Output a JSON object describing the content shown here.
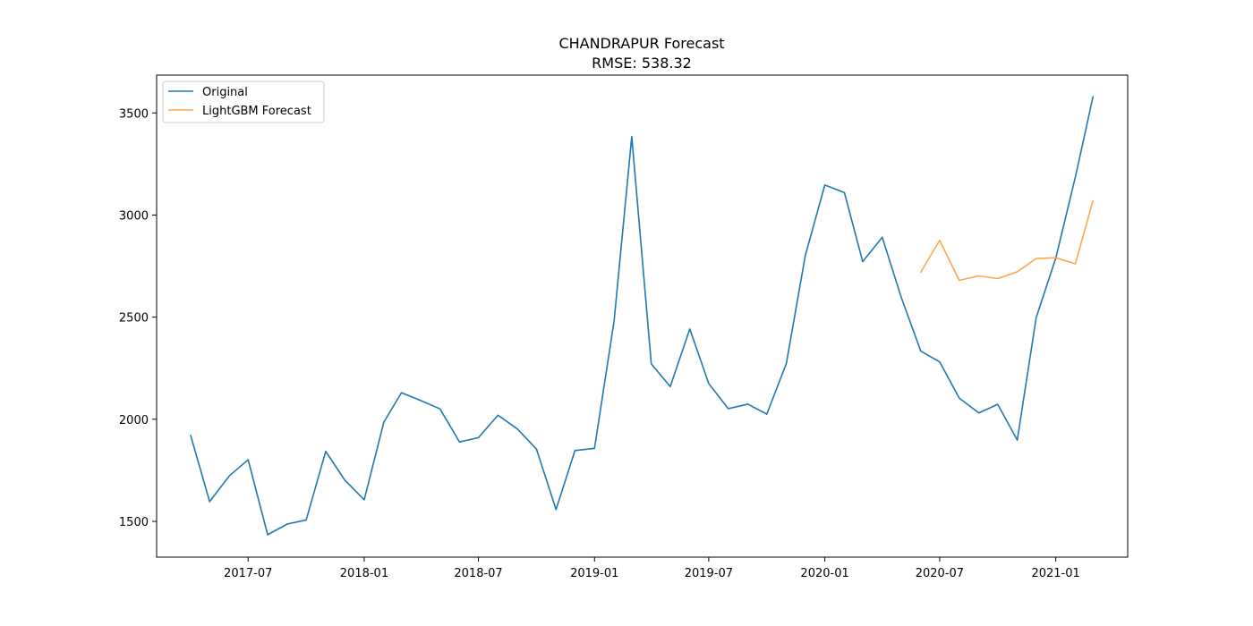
{
  "chart_data": {
    "type": "line",
    "title": "CHANDRAPUR Forecast",
    "subtitle": "RMSE: 538.32",
    "xlabel": "",
    "ylabel": "",
    "xlim": [
      "2017-02-06",
      "2021-04-25"
    ],
    "ylim": [
      1325,
      3685
    ],
    "x_ticks": [
      "2017-07",
      "2018-01",
      "2018-07",
      "2019-01",
      "2019-07",
      "2020-01",
      "2020-07",
      "2021-01"
    ],
    "y_ticks": [
      1500,
      2000,
      2500,
      3000,
      3500
    ],
    "grid": false,
    "legend_position": "upper-left",
    "series": [
      {
        "name": "Original",
        "color": "#1f77b4",
        "points": [
          [
            "2017-04-01",
            1920
          ],
          [
            "2017-05-01",
            1597
          ],
          [
            "2017-06-01",
            1722
          ],
          [
            "2017-07-01",
            1802
          ],
          [
            "2017-08-01",
            1435
          ],
          [
            "2017-09-01",
            1487
          ],
          [
            "2017-10-01",
            1507
          ],
          [
            "2017-11-01",
            1843
          ],
          [
            "2017-12-01",
            1703
          ],
          [
            "2018-01-01",
            1606
          ],
          [
            "2018-02-01",
            1985
          ],
          [
            "2018-03-01",
            2130
          ],
          [
            "2018-04-01",
            2091
          ],
          [
            "2018-05-01",
            2051
          ],
          [
            "2018-06-01",
            1889
          ],
          [
            "2018-07-01",
            1910
          ],
          [
            "2018-08-01",
            2020
          ],
          [
            "2018-09-01",
            1952
          ],
          [
            "2018-10-01",
            1854
          ],
          [
            "2018-11-01",
            1558
          ],
          [
            "2018-12-01",
            1847
          ],
          [
            "2019-01-01",
            1858
          ],
          [
            "2019-02-01",
            2481
          ],
          [
            "2019-03-01",
            3384
          ],
          [
            "2019-04-01",
            2271
          ],
          [
            "2019-05-01",
            2160
          ],
          [
            "2019-06-01",
            2442
          ],
          [
            "2019-07-01",
            2175
          ],
          [
            "2019-08-01",
            2052
          ],
          [
            "2019-09-01",
            2074
          ],
          [
            "2019-10-01",
            2025
          ],
          [
            "2019-11-01",
            2273
          ],
          [
            "2019-12-01",
            2801
          ],
          [
            "2020-01-01",
            3147
          ],
          [
            "2020-02-01",
            3110
          ],
          [
            "2020-03-01",
            2772
          ],
          [
            "2020-04-01",
            2891
          ],
          [
            "2020-05-01",
            2598
          ],
          [
            "2020-06-01",
            2334
          ],
          [
            "2020-07-01",
            2281
          ],
          [
            "2020-08-01",
            2104
          ],
          [
            "2020-09-01",
            2031
          ],
          [
            "2020-10-01",
            2073
          ],
          [
            "2020-11-01",
            1898
          ],
          [
            "2020-12-01",
            2498
          ],
          [
            "2021-01-01",
            2789
          ],
          [
            "2021-02-01",
            3185
          ],
          [
            "2021-03-01",
            3579
          ]
        ]
      },
      {
        "name": "LightGBM Forecast",
        "color": "#ffa64d",
        "points": [
          [
            "2020-06-01",
            2720
          ],
          [
            "2020-07-01",
            2876
          ],
          [
            "2020-08-01",
            2680
          ],
          [
            "2020-09-01",
            2702
          ],
          [
            "2020-10-01",
            2689
          ],
          [
            "2020-11-01",
            2722
          ],
          [
            "2020-12-01",
            2787
          ],
          [
            "2021-01-01",
            2791
          ],
          [
            "2021-02-01",
            2761
          ],
          [
            "2021-03-01",
            3070
          ]
        ]
      }
    ]
  }
}
